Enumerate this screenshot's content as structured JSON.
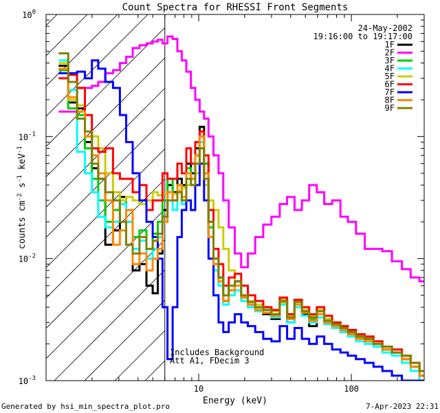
{
  "chart_data": {
    "type": "line",
    "title": "Count Spectra for RHESSI Front Segments",
    "xlabel": "Energy (keV)",
    "ylabel_parts": {
      "a": "counts cm",
      "b": "-2",
      "c": " s",
      "d": "-1",
      "e": " keV",
      "f": "-1"
    },
    "xscale": "log",
    "yscale": "log",
    "xlim": [
      1.0,
      300
    ],
    "ylim": [
      0.001,
      1.0
    ],
    "xticks": [
      {
        "v": 10,
        "label": "10"
      },
      {
        "v": 100,
        "label": "100"
      }
    ],
    "yticks": [
      {
        "v": 1.0,
        "base": "10",
        "exp": "0"
      },
      {
        "v": 0.1,
        "base": "10",
        "exp": "-1"
      },
      {
        "v": 0.01,
        "base": "10",
        "exp": "-2"
      },
      {
        "v": 0.001,
        "base": "10",
        "exp": "-3"
      }
    ],
    "hatched_region": [
      1.0,
      6.0
    ],
    "date": "24-May-2002",
    "time_range": "19:16:00 to 19:17:00",
    "annotations": [
      "Includes Background",
      "Att A1, FDecim 3"
    ],
    "footer_left": "Generated by hsi_min_spectra_plot.pro",
    "footer_right": "7-Apr-2023 22:31",
    "legend_position": "top-right",
    "series": [
      {
        "name": "1F",
        "color": "#000000",
        "x": [
          1.3,
          1.5,
          1.7,
          1.9,
          2.1,
          2.3,
          2.6,
          2.9,
          3.2,
          3.5,
          3.9,
          4.3,
          4.8,
          5.2,
          5.6,
          6.0,
          6.5,
          7.0,
          7.5,
          8.0,
          8.6,
          9.2,
          9.8,
          10.5,
          11.2,
          12.0,
          13.0,
          14.0,
          15.0,
          16.5,
          18.0,
          20,
          22,
          25,
          28,
          32,
          36,
          40,
          45,
          50,
          56,
          63,
          70,
          80,
          90,
          100,
          115,
          130,
          150,
          170,
          200,
          230,
          260,
          300
        ],
        "y": [
          0.38,
          0.19,
          0.17,
          0.09,
          0.055,
          0.045,
          0.013,
          0.017,
          0.032,
          0.02,
          0.008,
          0.009,
          0.006,
          0.0052,
          0.011,
          0.025,
          0.04,
          0.035,
          0.045,
          0.04,
          0.06,
          0.05,
          0.08,
          0.12,
          0.06,
          0.02,
          0.009,
          0.007,
          0.0045,
          0.006,
          0.0065,
          0.005,
          0.004,
          0.0038,
          0.0035,
          0.0032,
          0.0045,
          0.003,
          0.0045,
          0.0035,
          0.0028,
          0.0035,
          0.003,
          0.0028,
          0.0025,
          0.0025,
          0.0023,
          0.0022,
          0.002,
          0.0018,
          0.0017,
          0.0015,
          0.0013,
          0.0011
        ]
      },
      {
        "name": "2F",
        "color": "#ff00ff",
        "x": [
          1.3,
          1.5,
          1.7,
          1.9,
          2.1,
          2.3,
          2.6,
          2.9,
          3.2,
          3.5,
          3.9,
          4.3,
          4.8,
          5.2,
          5.6,
          6.0,
          6.5,
          7.0,
          7.5,
          8.0,
          8.6,
          9.2,
          9.8,
          10.5,
          11.2,
          12.0,
          13.0,
          14.0,
          15.0,
          16.5,
          18.0,
          20,
          22,
          25,
          28,
          32,
          36,
          40,
          45,
          50,
          56,
          63,
          70,
          80,
          90,
          100,
          115,
          130,
          150,
          170,
          200,
          230,
          260,
          300
        ],
        "y": [
          0.16,
          0.16,
          0.25,
          0.25,
          0.26,
          0.28,
          0.33,
          0.35,
          0.4,
          0.45,
          0.53,
          0.56,
          0.58,
          0.6,
          0.62,
          0.58,
          0.66,
          0.63,
          0.5,
          0.42,
          0.34,
          0.25,
          0.2,
          0.16,
          0.14,
          0.1,
          0.07,
          0.05,
          0.03,
          0.018,
          0.011,
          0.0085,
          0.011,
          0.015,
          0.019,
          0.022,
          0.028,
          0.032,
          0.025,
          0.03,
          0.04,
          0.035,
          0.028,
          0.03,
          0.022,
          0.02,
          0.016,
          0.012,
          0.012,
          0.0115,
          0.0095,
          0.0082,
          0.007,
          0.0065
        ]
      },
      {
        "name": "3F",
        "color": "#00cc00",
        "x": [
          1.3,
          1.5,
          1.7,
          1.9,
          2.1,
          2.3,
          2.6,
          2.9,
          3.2,
          3.5,
          3.9,
          4.3,
          4.8,
          5.2,
          5.6,
          6.0,
          6.5,
          7.0,
          7.5,
          8.0,
          8.6,
          9.2,
          9.8,
          10.5,
          11.2,
          12.0,
          13.0,
          14.0,
          15.0,
          16.5,
          18.0,
          20,
          22,
          25,
          28,
          32,
          36,
          40,
          45,
          50,
          56,
          63,
          70,
          80,
          90,
          100,
          115,
          130,
          150,
          170,
          200,
          230,
          260,
          300
        ],
        "y": [
          0.35,
          0.17,
          0.15,
          0.08,
          0.045,
          0.03,
          0.02,
          0.025,
          0.03,
          0.025,
          0.015,
          0.017,
          0.012,
          0.016,
          0.02,
          0.03,
          0.045,
          0.03,
          0.04,
          0.03,
          0.055,
          0.045,
          0.07,
          0.1,
          0.06,
          0.018,
          0.01,
          0.007,
          0.005,
          0.0055,
          0.006,
          0.0048,
          0.0042,
          0.004,
          0.0038,
          0.0034,
          0.0044,
          0.0032,
          0.0042,
          0.0036,
          0.0032,
          0.0035,
          0.003,
          0.0028,
          0.0026,
          0.0024,
          0.0022,
          0.0021,
          0.002,
          0.0018,
          0.0017,
          0.0015,
          0.0013,
          0.0011
        ]
      },
      {
        "name": "4F",
        "color": "#00ffff",
        "x": [
          1.3,
          1.5,
          1.7,
          1.9,
          2.1,
          2.3,
          2.6,
          2.9,
          3.2,
          3.5,
          3.9,
          4.3,
          4.8,
          5.2,
          5.6,
          6.0,
          6.5,
          7.0,
          7.5,
          8.0,
          8.6,
          9.2,
          9.8,
          10.5,
          11.2,
          12.0,
          13.0,
          14.0,
          15.0,
          16.5,
          18.0,
          20,
          22,
          25,
          28,
          32,
          36,
          40,
          45,
          50,
          56,
          63,
          70,
          80,
          90,
          100,
          115,
          130,
          150,
          170,
          200,
          230,
          260,
          300
        ],
        "y": [
          0.42,
          0.24,
          0.075,
          0.05,
          0.035,
          0.022,
          0.018,
          0.02,
          0.028,
          0.02,
          0.012,
          0.014,
          0.01,
          0.012,
          0.015,
          0.02,
          0.035,
          0.025,
          0.035,
          0.028,
          0.05,
          0.04,
          0.06,
          0.09,
          0.05,
          0.015,
          0.008,
          0.006,
          0.0042,
          0.005,
          0.0055,
          0.0045,
          0.004,
          0.0037,
          0.0036,
          0.0033,
          0.0042,
          0.003,
          0.004,
          0.0034,
          0.003,
          0.0033,
          0.0029,
          0.0027,
          0.0025,
          0.0023,
          0.0021,
          0.002,
          0.0019,
          0.0017,
          0.0016,
          0.0014,
          0.0012,
          0.001
        ]
      },
      {
        "name": "5F",
        "color": "#cccc00",
        "x": [
          1.3,
          1.5,
          1.7,
          1.9,
          2.1,
          2.3,
          2.6,
          2.9,
          3.2,
          3.5,
          3.9,
          4.3,
          4.8,
          5.2,
          5.6,
          6.0,
          6.5,
          7.0,
          7.5,
          8.0,
          8.6,
          9.2,
          9.8,
          10.5,
          11.2,
          12.0,
          13.0,
          14.0,
          15.0,
          16.5,
          18.0,
          20,
          22,
          25,
          28,
          32,
          36,
          40,
          45,
          50,
          56,
          63,
          70,
          80,
          90,
          100,
          115,
          130,
          150,
          170,
          200,
          230,
          260,
          300
        ],
        "y": [
          0.4,
          0.2,
          0.18,
          0.11,
          0.1,
          0.08,
          0.05,
          0.035,
          0.03,
          0.032,
          0.03,
          0.028,
          0.03,
          0.035,
          0.033,
          0.034,
          0.035,
          0.034,
          0.036,
          0.038,
          0.04,
          0.045,
          0.05,
          0.06,
          0.04,
          0.03,
          0.025,
          0.018,
          0.012,
          0.008,
          0.006,
          0.005,
          0.0045,
          0.0042,
          0.004,
          0.0037,
          0.0047,
          0.0034,
          0.0045,
          0.0038,
          0.0034,
          0.0038,
          0.0032,
          0.003,
          0.0028,
          0.0026,
          0.0024,
          0.0022,
          0.0021,
          0.0019,
          0.0018,
          0.0016,
          0.0014,
          0.0012
        ]
      },
      {
        "name": "6F",
        "color": "#ff0000",
        "x": [
          1.3,
          1.5,
          1.7,
          1.9,
          2.1,
          2.3,
          2.6,
          2.9,
          3.2,
          3.5,
          3.9,
          4.3,
          4.8,
          5.2,
          5.6,
          6.0,
          6.5,
          7.0,
          7.5,
          8.0,
          8.6,
          9.2,
          9.8,
          10.5,
          11.2,
          12.0,
          13.0,
          14.0,
          15.0,
          16.5,
          18.0,
          20,
          22,
          25,
          28,
          32,
          36,
          40,
          45,
          50,
          56,
          63,
          70,
          80,
          90,
          100,
          115,
          130,
          150,
          170,
          200,
          230,
          260,
          300
        ],
        "y": [
          0.3,
          0.32,
          0.25,
          0.15,
          0.08,
          0.075,
          0.08,
          0.05,
          0.045,
          0.045,
          0.035,
          0.04,
          0.025,
          0.03,
          0.03,
          0.05,
          0.045,
          0.045,
          0.06,
          0.05,
          0.08,
          0.06,
          0.09,
          0.11,
          0.07,
          0.025,
          0.012,
          0.009,
          0.006,
          0.007,
          0.0075,
          0.006,
          0.005,
          0.0045,
          0.004,
          0.0038,
          0.0048,
          0.0035,
          0.0046,
          0.004,
          0.0035,
          0.004,
          0.0034,
          0.003,
          0.0028,
          0.0026,
          0.0024,
          0.0023,
          0.0021,
          0.0019,
          0.0018,
          0.0016,
          0.0014,
          0.0012
        ]
      },
      {
        "name": "7F",
        "color": "#0000ff",
        "x": [
          1.3,
          1.5,
          1.7,
          1.9,
          2.1,
          2.3,
          2.6,
          2.9,
          3.2,
          3.5,
          3.9,
          4.3,
          4.8,
          5.2,
          5.6,
          6.0,
          6.5,
          7.0,
          7.5,
          8.0,
          8.6,
          9.2,
          9.8,
          10.5,
          11.2,
          12.0,
          13.0,
          14.0,
          15.0,
          16.5,
          18.0,
          20,
          22,
          25,
          28,
          32,
          36,
          40,
          45,
          50,
          56,
          63,
          70,
          80,
          90,
          100,
          115,
          130,
          150,
          170,
          200,
          230,
          260,
          300
        ],
        "y": [
          0.33,
          0.33,
          0.34,
          0.3,
          0.42,
          0.36,
          0.28,
          0.25,
          0.15,
          0.09,
          0.05,
          0.03,
          0.02,
          0.015,
          0.01,
          0.004,
          0.0015,
          0.004,
          0.015,
          0.025,
          0.03,
          0.025,
          0.04,
          0.06,
          0.03,
          0.01,
          0.005,
          0.003,
          0.0025,
          0.003,
          0.0035,
          0.003,
          0.0028,
          0.0025,
          0.0022,
          0.0021,
          0.0028,
          0.0022,
          0.0027,
          0.0022,
          0.002,
          0.0023,
          0.002,
          0.0018,
          0.0017,
          0.0016,
          0.0015,
          0.0014,
          0.0013,
          0.0012,
          0.0011,
          0.001,
          0.001,
          0.001
        ]
      },
      {
        "name": "8F",
        "color": "#ff8800",
        "x": [
          1.3,
          1.5,
          1.7,
          1.9,
          2.1,
          2.3,
          2.6,
          2.9,
          3.2,
          3.5,
          3.9,
          4.3,
          4.8,
          5.2,
          5.6,
          6.0,
          6.5,
          7.0,
          7.5,
          8.0,
          8.6,
          9.2,
          9.8,
          10.5,
          11.2,
          12.0,
          13.0,
          14.0,
          15.0,
          16.5,
          18.0,
          20,
          22,
          25,
          28,
          32,
          36,
          40,
          45,
          50,
          56,
          63,
          70,
          80,
          90,
          100,
          115,
          130,
          150,
          170,
          200,
          230,
          260,
          300
        ],
        "y": [
          0.36,
          0.21,
          0.16,
          0.1,
          0.07,
          0.05,
          0.03,
          0.013,
          0.017,
          0.025,
          0.009,
          0.011,
          0.008,
          0.01,
          0.012,
          0.02,
          0.035,
          0.03,
          0.04,
          0.032,
          0.05,
          0.045,
          0.07,
          0.1,
          0.05,
          0.015,
          0.009,
          0.0065,
          0.0045,
          0.0055,
          0.006,
          0.0048,
          0.0042,
          0.0038,
          0.0036,
          0.0034,
          0.0044,
          0.0032,
          0.0042,
          0.0036,
          0.0031,
          0.0035,
          0.003,
          0.0028,
          0.0026,
          0.0024,
          0.0022,
          0.0021,
          0.002,
          0.0018,
          0.0017,
          0.0015,
          0.0013,
          0.0011
        ]
      },
      {
        "name": "9F",
        "color": "#808000",
        "x": [
          1.3,
          1.5,
          1.7,
          1.9,
          2.1,
          2.3,
          2.6,
          2.9,
          3.2,
          3.5,
          3.9,
          4.3,
          4.8,
          5.2,
          5.6,
          6.0,
          6.5,
          7.0,
          7.5,
          8.0,
          8.6,
          9.2,
          9.8,
          10.5,
          11.2,
          12.0,
          13.0,
          14.0,
          15.0,
          16.5,
          18.0,
          20,
          22,
          25,
          28,
          32,
          36,
          40,
          45,
          50,
          56,
          63,
          70,
          80,
          90,
          100,
          115,
          130,
          150,
          170,
          200,
          230,
          260,
          300
        ],
        "y": [
          0.48,
          0.28,
          0.14,
          0.11,
          0.06,
          0.045,
          0.035,
          0.03,
          0.02,
          0.013,
          0.011,
          0.015,
          0.012,
          0.014,
          0.016,
          0.022,
          0.03,
          0.03,
          0.035,
          0.03,
          0.045,
          0.04,
          0.06,
          0.08,
          0.045,
          0.02,
          0.01,
          0.007,
          0.005,
          0.006,
          0.0065,
          0.005,
          0.0044,
          0.004,
          0.0038,
          0.0035,
          0.0045,
          0.0033,
          0.0044,
          0.0037,
          0.0033,
          0.0037,
          0.0031,
          0.0029,
          0.0027,
          0.0025,
          0.0023,
          0.0022,
          0.002,
          0.0019,
          0.0017,
          0.0016,
          0.0014,
          0.0012
        ]
      }
    ]
  }
}
